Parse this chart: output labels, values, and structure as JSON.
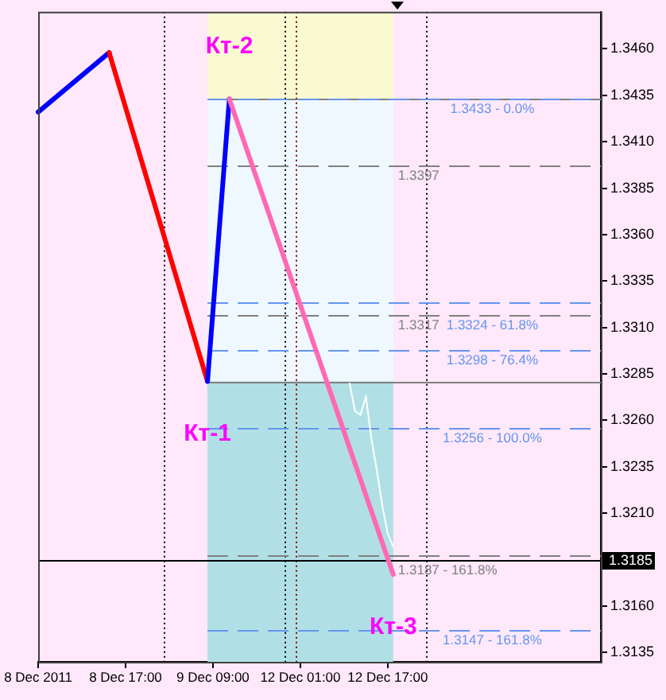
{
  "chart_data": {
    "type": "line",
    "categories": [
      "8 Dec 2011",
      null,
      null,
      null,
      null,
      null,
      null,
      null,
      null,
      null,
      null,
      null,
      null,
      null,
      null,
      null,
      "8 Dec 17:00",
      null,
      null,
      null,
      null,
      null,
      null,
      null,
      null,
      null,
      null,
      null,
      null,
      null,
      null,
      null,
      "9 Dec 09:00",
      null,
      null,
      null,
      null,
      null,
      null,
      null,
      null,
      null,
      null,
      null,
      null,
      null,
      null,
      null,
      "12 Dec 01:00",
      null,
      null,
      null,
      null,
      null,
      null,
      null,
      null,
      null,
      null,
      null,
      null,
      null,
      null,
      null,
      "12 Dec 17:00",
      null,
      null,
      null,
      null,
      null,
      null,
      null,
      null,
      null,
      null,
      null,
      null,
      null,
      null,
      null,
      null,
      null,
      null,
      null,
      null,
      null,
      null,
      null,
      null,
      null,
      null,
      null,
      null,
      null,
      null,
      null,
      null,
      null,
      null,
      null,
      null,
      null,
      null,
      null
    ],
    "series": [
      {
        "color": "#ffffff",
        "values": [
          null,
          null,
          null,
          null,
          null,
          null,
          null,
          null,
          null,
          null,
          null,
          null,
          null,
          null,
          null,
          null,
          null,
          null,
          null,
          null,
          null,
          null,
          null,
          null,
          null,
          null,
          null,
          null,
          null,
          null,
          null,
          null,
          null,
          null,
          null,
          null,
          null,
          null,
          null,
          null,
          null,
          null,
          null,
          null,
          null,
          null,
          null,
          null,
          null,
          null,
          null,
          null,
          null,
          null,
          null,
          null,
          null,
          1.328,
          1.3265,
          1.3263,
          1.3273,
          1.325,
          1.3233,
          1.3214,
          1.3199,
          1.3192,
          null,
          null,
          null,
          null,
          null,
          null,
          null,
          null,
          null,
          null,
          null,
          null,
          null,
          null,
          null,
          null,
          null,
          null,
          null,
          null,
          null,
          null,
          null,
          null,
          null,
          null,
          null,
          null,
          null,
          null,
          null,
          null,
          null,
          null,
          null,
          null,
          null,
          null
        ]
      },
      {
        "color": "#0000ff",
        "values": [
          1.3426,
          null,
          null,
          null,
          null,
          null,
          null,
          null,
          null,
          null,
          null,
          null,
          null,
          1.3458,
          null,
          null,
          null,
          null,
          null,
          null,
          null,
          null,
          null,
          null,
          null,
          null,
          null,
          null,
          null,
          null,
          null,
          null,
          null,
          null,
          null,
          null,
          null,
          null,
          null,
          null,
          null,
          null,
          null,
          null,
          null,
          null,
          null,
          null,
          null,
          null,
          null,
          null,
          null,
          null,
          null,
          null,
          null,
          null,
          null,
          null,
          null,
          null,
          null,
          null,
          null,
          null,
          null,
          null,
          null,
          null,
          null,
          null,
          null,
          null,
          null,
          null,
          null,
          null,
          null,
          null,
          null,
          null,
          null,
          null,
          null,
          null,
          null,
          null,
          null,
          null,
          null,
          null,
          null,
          null,
          null,
          null,
          null,
          null,
          null,
          null,
          null,
          null,
          null,
          null
        ]
      },
      {
        "color": "#ff0000",
        "values": [
          null,
          null,
          null,
          null,
          null,
          null,
          null,
          null,
          null,
          null,
          null,
          null,
          null,
          1.3458,
          null,
          null,
          null,
          null,
          null,
          null,
          null,
          null,
          null,
          null,
          null,
          null,
          null,
          null,
          null,
          null,
          null,
          1.3281,
          null,
          null,
          null,
          null,
          null,
          null,
          null,
          null,
          null,
          null,
          null,
          null,
          null,
          null,
          null,
          null,
          null,
          null,
          null,
          null,
          null,
          null,
          null,
          null,
          null,
          null,
          null,
          null,
          null,
          null,
          null,
          null,
          null,
          null,
          null,
          null,
          null,
          null,
          null,
          null,
          null,
          null,
          null,
          null,
          null,
          null,
          null,
          null,
          null,
          null,
          null,
          null,
          null,
          null,
          null,
          null,
          null,
          null,
          null,
          null,
          null,
          null,
          null,
          null,
          null,
          null,
          null,
          null,
          null,
          null,
          null,
          null
        ]
      },
      {
        "color": "#0000ff",
        "values": [
          null,
          null,
          null,
          null,
          null,
          null,
          null,
          null,
          null,
          null,
          null,
          null,
          null,
          null,
          null,
          null,
          null,
          null,
          null,
          null,
          null,
          null,
          null,
          null,
          null,
          null,
          null,
          null,
          null,
          null,
          null,
          1.3281,
          null,
          null,
          null,
          1.3433,
          null,
          null,
          null,
          null,
          null,
          null,
          null,
          null,
          null,
          null,
          null,
          null,
          null,
          null,
          null,
          null,
          null,
          null,
          null,
          null,
          null,
          null,
          null,
          null,
          null,
          null,
          null,
          null,
          null,
          null,
          null,
          null,
          null,
          null,
          null,
          null,
          null,
          null,
          null,
          null,
          null,
          null,
          null,
          null,
          null,
          null,
          null,
          null,
          null,
          null,
          null,
          null,
          null,
          null,
          null,
          null,
          null,
          null,
          null,
          null,
          null,
          null,
          null,
          null,
          null,
          null,
          null,
          null
        ]
      },
      {
        "color": "#ff69b4",
        "values": [
          null,
          null,
          null,
          null,
          null,
          null,
          null,
          null,
          null,
          null,
          null,
          null,
          null,
          null,
          null,
          null,
          null,
          null,
          null,
          null,
          null,
          null,
          null,
          null,
          null,
          null,
          null,
          null,
          null,
          null,
          null,
          null,
          null,
          null,
          null,
          1.3433,
          null,
          null,
          null,
          null,
          null,
          null,
          null,
          null,
          null,
          null,
          null,
          null,
          null,
          null,
          null,
          null,
          null,
          null,
          null,
          null,
          null,
          null,
          null,
          null,
          null,
          null,
          null,
          null,
          null,
          1.3177,
          null,
          null,
          null,
          null,
          null,
          null,
          null,
          null,
          null,
          null,
          null,
          null,
          null,
          null,
          null,
          null,
          null,
          null,
          null,
          null,
          null,
          null,
          null,
          null,
          null,
          null,
          null,
          null,
          null,
          null,
          null,
          null,
          null,
          null,
          null,
          null,
          null,
          null
        ]
      }
    ],
    "ylim": [
      1.313,
      1.348
    ],
    "yticks": [
      {
        "value": 1.346,
        "label": "1.3460"
      },
      1.3435,
      {
        "value": 1.341,
        "label": "1.3410"
      },
      1.3385,
      {
        "value": 1.336,
        "label": "1.3360"
      },
      1.3335,
      {
        "value": 1.331,
        "label": "1.3310"
      },
      1.3285,
      {
        "value": 1.326,
        "label": "1.3260"
      },
      1.3235,
      {
        "value": 1.321,
        "label": "1.3210"
      },
      {
        "value": 1.316,
        "label": "1.3160"
      },
      1.3135
    ],
    "bands": [
      {
        "axis": "y",
        "from": 1.3433,
        "to": 1.348,
        "color": "#fafad2"
      },
      {
        "axis": "y",
        "from": 1.3281,
        "to": 1.3433,
        "color": "#f0f8ff"
      },
      {
        "axis": "y",
        "from": 1.313,
        "to": 1.3281,
        "color": "#b0e0e6"
      }
    ],
    "ref_lines": [
      {
        "axis": "y",
        "value": 1.3433,
        "color": "#808080",
        "line_style": "solid"
      },
      {
        "axis": "y",
        "value": 1.3281,
        "color": "#808080",
        "line_style": "solid"
      },
      {
        "axis": "y",
        "value": 1.3433,
        "label": "1.3433 - 0.0%",
        "color": "#6495ed",
        "line_style": "dashed"
      },
      {
        "axis": "y",
        "value": 1.3324,
        "label": "1.3324 - 61.8%",
        "color": "#6495ed",
        "line_style": "dashed"
      },
      {
        "axis": "y",
        "value": 1.3298,
        "label": "1.3298 - 76.4%",
        "color": "#6495ed",
        "line_style": "dashed"
      },
      {
        "axis": "y",
        "value": 1.3256,
        "label": "1.3256 - 100.0%",
        "color": "#6495ed",
        "line_style": "dashed"
      },
      {
        "axis": "y",
        "value": 1.3147,
        "label": "1.3147 - 161.8%",
        "color": "#6495ed",
        "line_style": "dashed"
      },
      {
        "axis": "y",
        "value": 1.3397,
        "label": "1.3397",
        "color": "#808080",
        "line_style": "dashed"
      },
      {
        "axis": "y",
        "value": 1.3317,
        "label": "1.3317",
        "color": "#808080",
        "line_style": "dashed"
      },
      {
        "axis": "y",
        "value": 1.3187,
        "label": "1.3187 - 161.8%",
        "color": "#808080",
        "line_style": "dashed"
      },
      {
        "axis": "y",
        "value": 1.3185,
        "label": "1.3185",
        "color": "#000000",
        "line_style": "solid"
      }
    ],
    "annotations": [
      {
        "text": "Кт-1",
        "y": 1.3281
      },
      {
        "text": "Кт-2",
        "y": 1.3433
      },
      {
        "text": "Кт-3",
        "y": 1.3177
      }
    ]
  }
}
